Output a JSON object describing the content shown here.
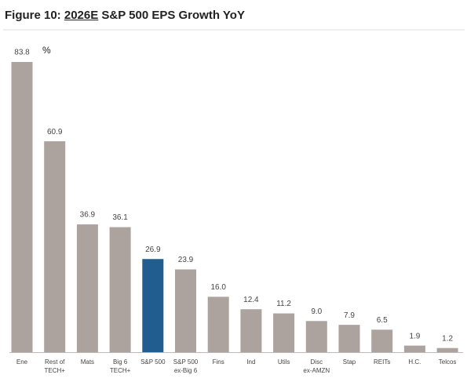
{
  "chart_data": {
    "type": "bar",
    "title": [
      "Figure 10: ",
      "2026E",
      " S&P 500 EPS Growth YoY"
    ],
    "unit": "%",
    "categories": [
      [
        "Ene"
      ],
      [
        "Rest of",
        "TECH+"
      ],
      [
        "Mats"
      ],
      [
        "Big 6",
        "TECH+"
      ],
      [
        "S&P 500"
      ],
      [
        "S&P 500",
        "ex-Big 6"
      ],
      [
        "Fins"
      ],
      [
        "Ind"
      ],
      [
        "Utils"
      ],
      [
        "Disc",
        "ex-AMZN"
      ],
      [
        "Stap"
      ],
      [
        "REITs"
      ],
      [
        "H.C."
      ],
      [
        "Telcos"
      ]
    ],
    "values": [
      83.8,
      60.9,
      36.9,
      36.1,
      26.9,
      23.9,
      16.0,
      12.4,
      11.2,
      9.0,
      7.9,
      6.5,
      1.9,
      1.2
    ],
    "value_labels": [
      "83.8",
      "60.9",
      "36.9",
      "36.1",
      "26.9",
      "23.9",
      "16.0",
      "12.4",
      "11.2",
      "9.0",
      "7.9",
      "6.5",
      "1.9",
      "1.2"
    ],
    "colors": [
      "#aca39f",
      "#aca39f",
      "#aca39f",
      "#aca39f",
      "#225d8f",
      "#aca39f",
      "#aca39f",
      "#aca39f",
      "#aca39f",
      "#aca39f",
      "#aca39f",
      "#aca39f",
      "#aca39f",
      "#aca39f"
    ]
  }
}
